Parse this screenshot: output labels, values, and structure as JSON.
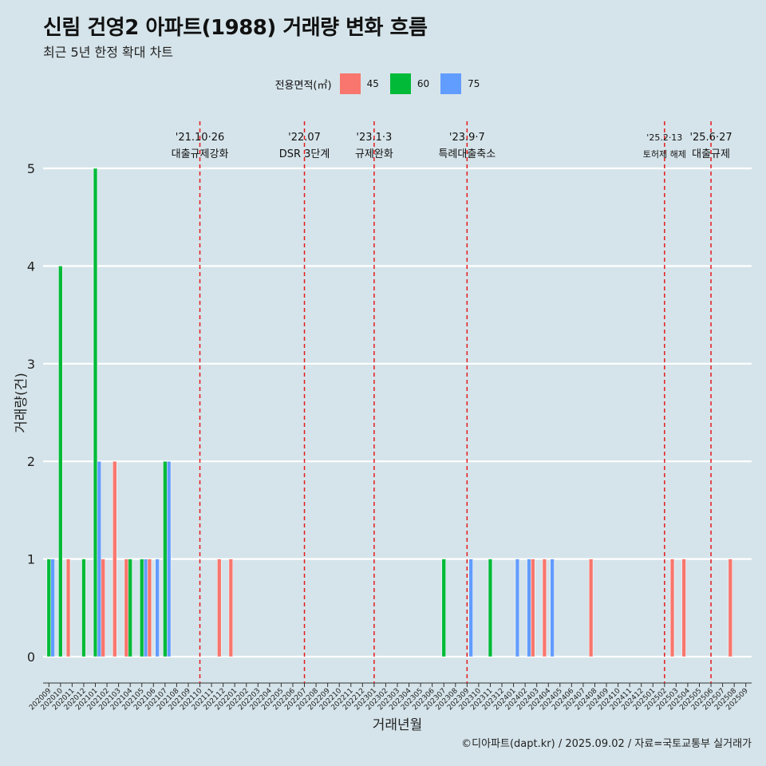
{
  "header": {
    "title": "신림 건영2 아파트(1988) 거래량 변화 흐름",
    "subtitle": "최근 5년 한정 확대 차트",
    "caption": "©디아파트(dapt.kr) / 2025.09.02 / 자료=국토교통부 실거래가"
  },
  "legend": {
    "title": "전용면적(㎡)",
    "items": [
      {
        "label": "45",
        "color": "#F8766D"
      },
      {
        "label": "60",
        "color": "#00BA38"
      },
      {
        "label": "75",
        "color": "#619CFF"
      }
    ]
  },
  "chart_data": {
    "type": "bar",
    "title": "신림 건영2 아파트(1988) 거래량 변화 흐름",
    "xlabel": "거래년월",
    "ylabel": "거래량(건)",
    "ylim": [
      0,
      5
    ],
    "yticks": [
      "0",
      "1",
      "2",
      "3",
      "4",
      "5"
    ],
    "categories": [
      "202009",
      "202010",
      "202011",
      "202012",
      "202101",
      "202102",
      "202103",
      "202104",
      "202105",
      "202106",
      "202107",
      "202108",
      "202109",
      "202110",
      "202111",
      "202112",
      "202201",
      "202202",
      "202203",
      "202204",
      "202205",
      "202206",
      "202207",
      "202208",
      "202209",
      "202210",
      "202211",
      "202212",
      "202301",
      "202302",
      "202303",
      "202304",
      "202305",
      "202306",
      "202307",
      "202308",
      "202309",
      "202310",
      "202311",
      "202312",
      "202401",
      "202402",
      "202403",
      "202404",
      "202405",
      "202406",
      "202407",
      "202408",
      "202409",
      "202410",
      "202411",
      "202412",
      "202501",
      "202502",
      "202503",
      "202504",
      "202505",
      "202506",
      "202507",
      "202508",
      "202509"
    ],
    "series": [
      {
        "name": "45",
        "color": "#F8766D",
        "values": [
          0,
          0,
          1,
          0,
          0,
          1,
          2,
          1,
          0,
          1,
          0,
          0,
          0,
          0,
          0,
          1,
          1,
          0,
          0,
          0,
          0,
          0,
          0,
          0,
          0,
          0,
          0,
          0,
          0,
          0,
          0,
          0,
          0,
          0,
          0,
          0,
          0,
          0,
          0,
          0,
          0,
          0,
          1,
          1,
          0,
          0,
          0,
          1,
          0,
          0,
          0,
          0,
          0,
          0,
          1,
          1,
          0,
          0,
          0,
          1,
          0
        ]
      },
      {
        "name": "60",
        "color": "#00BA38",
        "values": [
          1,
          4,
          0,
          1,
          5,
          0,
          0,
          1,
          1,
          0,
          2,
          0,
          0,
          0,
          0,
          0,
          0,
          0,
          0,
          0,
          0,
          0,
          0,
          0,
          0,
          0,
          0,
          0,
          0,
          0,
          0,
          0,
          0,
          0,
          1,
          0,
          0,
          0,
          1,
          0,
          0,
          0,
          0,
          0,
          0,
          0,
          0,
          0,
          0,
          0,
          0,
          0,
          0,
          0,
          0,
          0,
          0,
          0,
          0,
          0,
          0
        ]
      },
      {
        "name": "75",
        "color": "#619CFF",
        "values": [
          1,
          0,
          0,
          0,
          2,
          0,
          0,
          0,
          1,
          1,
          2,
          0,
          0,
          0,
          0,
          0,
          0,
          0,
          0,
          0,
          0,
          0,
          0,
          0,
          0,
          0,
          0,
          0,
          0,
          0,
          0,
          0,
          0,
          0,
          0,
          0,
          1,
          0,
          0,
          0,
          1,
          1,
          0,
          1,
          0,
          0,
          0,
          0,
          0,
          0,
          0,
          0,
          0,
          0,
          0,
          0,
          0,
          0,
          0,
          0,
          0
        ]
      }
    ],
    "annotations": [
      {
        "x": 13.5,
        "date": "'21.10·26",
        "label": "대출규제강화"
      },
      {
        "x": 22.5,
        "date": "'22.07",
        "label": "DSR 3단계"
      },
      {
        "x": 28.5,
        "date": "'23.1·3",
        "label": "규제완화"
      },
      {
        "x": 36.5,
        "date": "'23.9·7",
        "label": "특례대출축소"
      },
      {
        "x": 53.5,
        "date": "'25.2·13",
        "label": "토허제 해제"
      },
      {
        "x": 57.5,
        "date": "'25.6·27",
        "label": "대출규제"
      }
    ]
  }
}
